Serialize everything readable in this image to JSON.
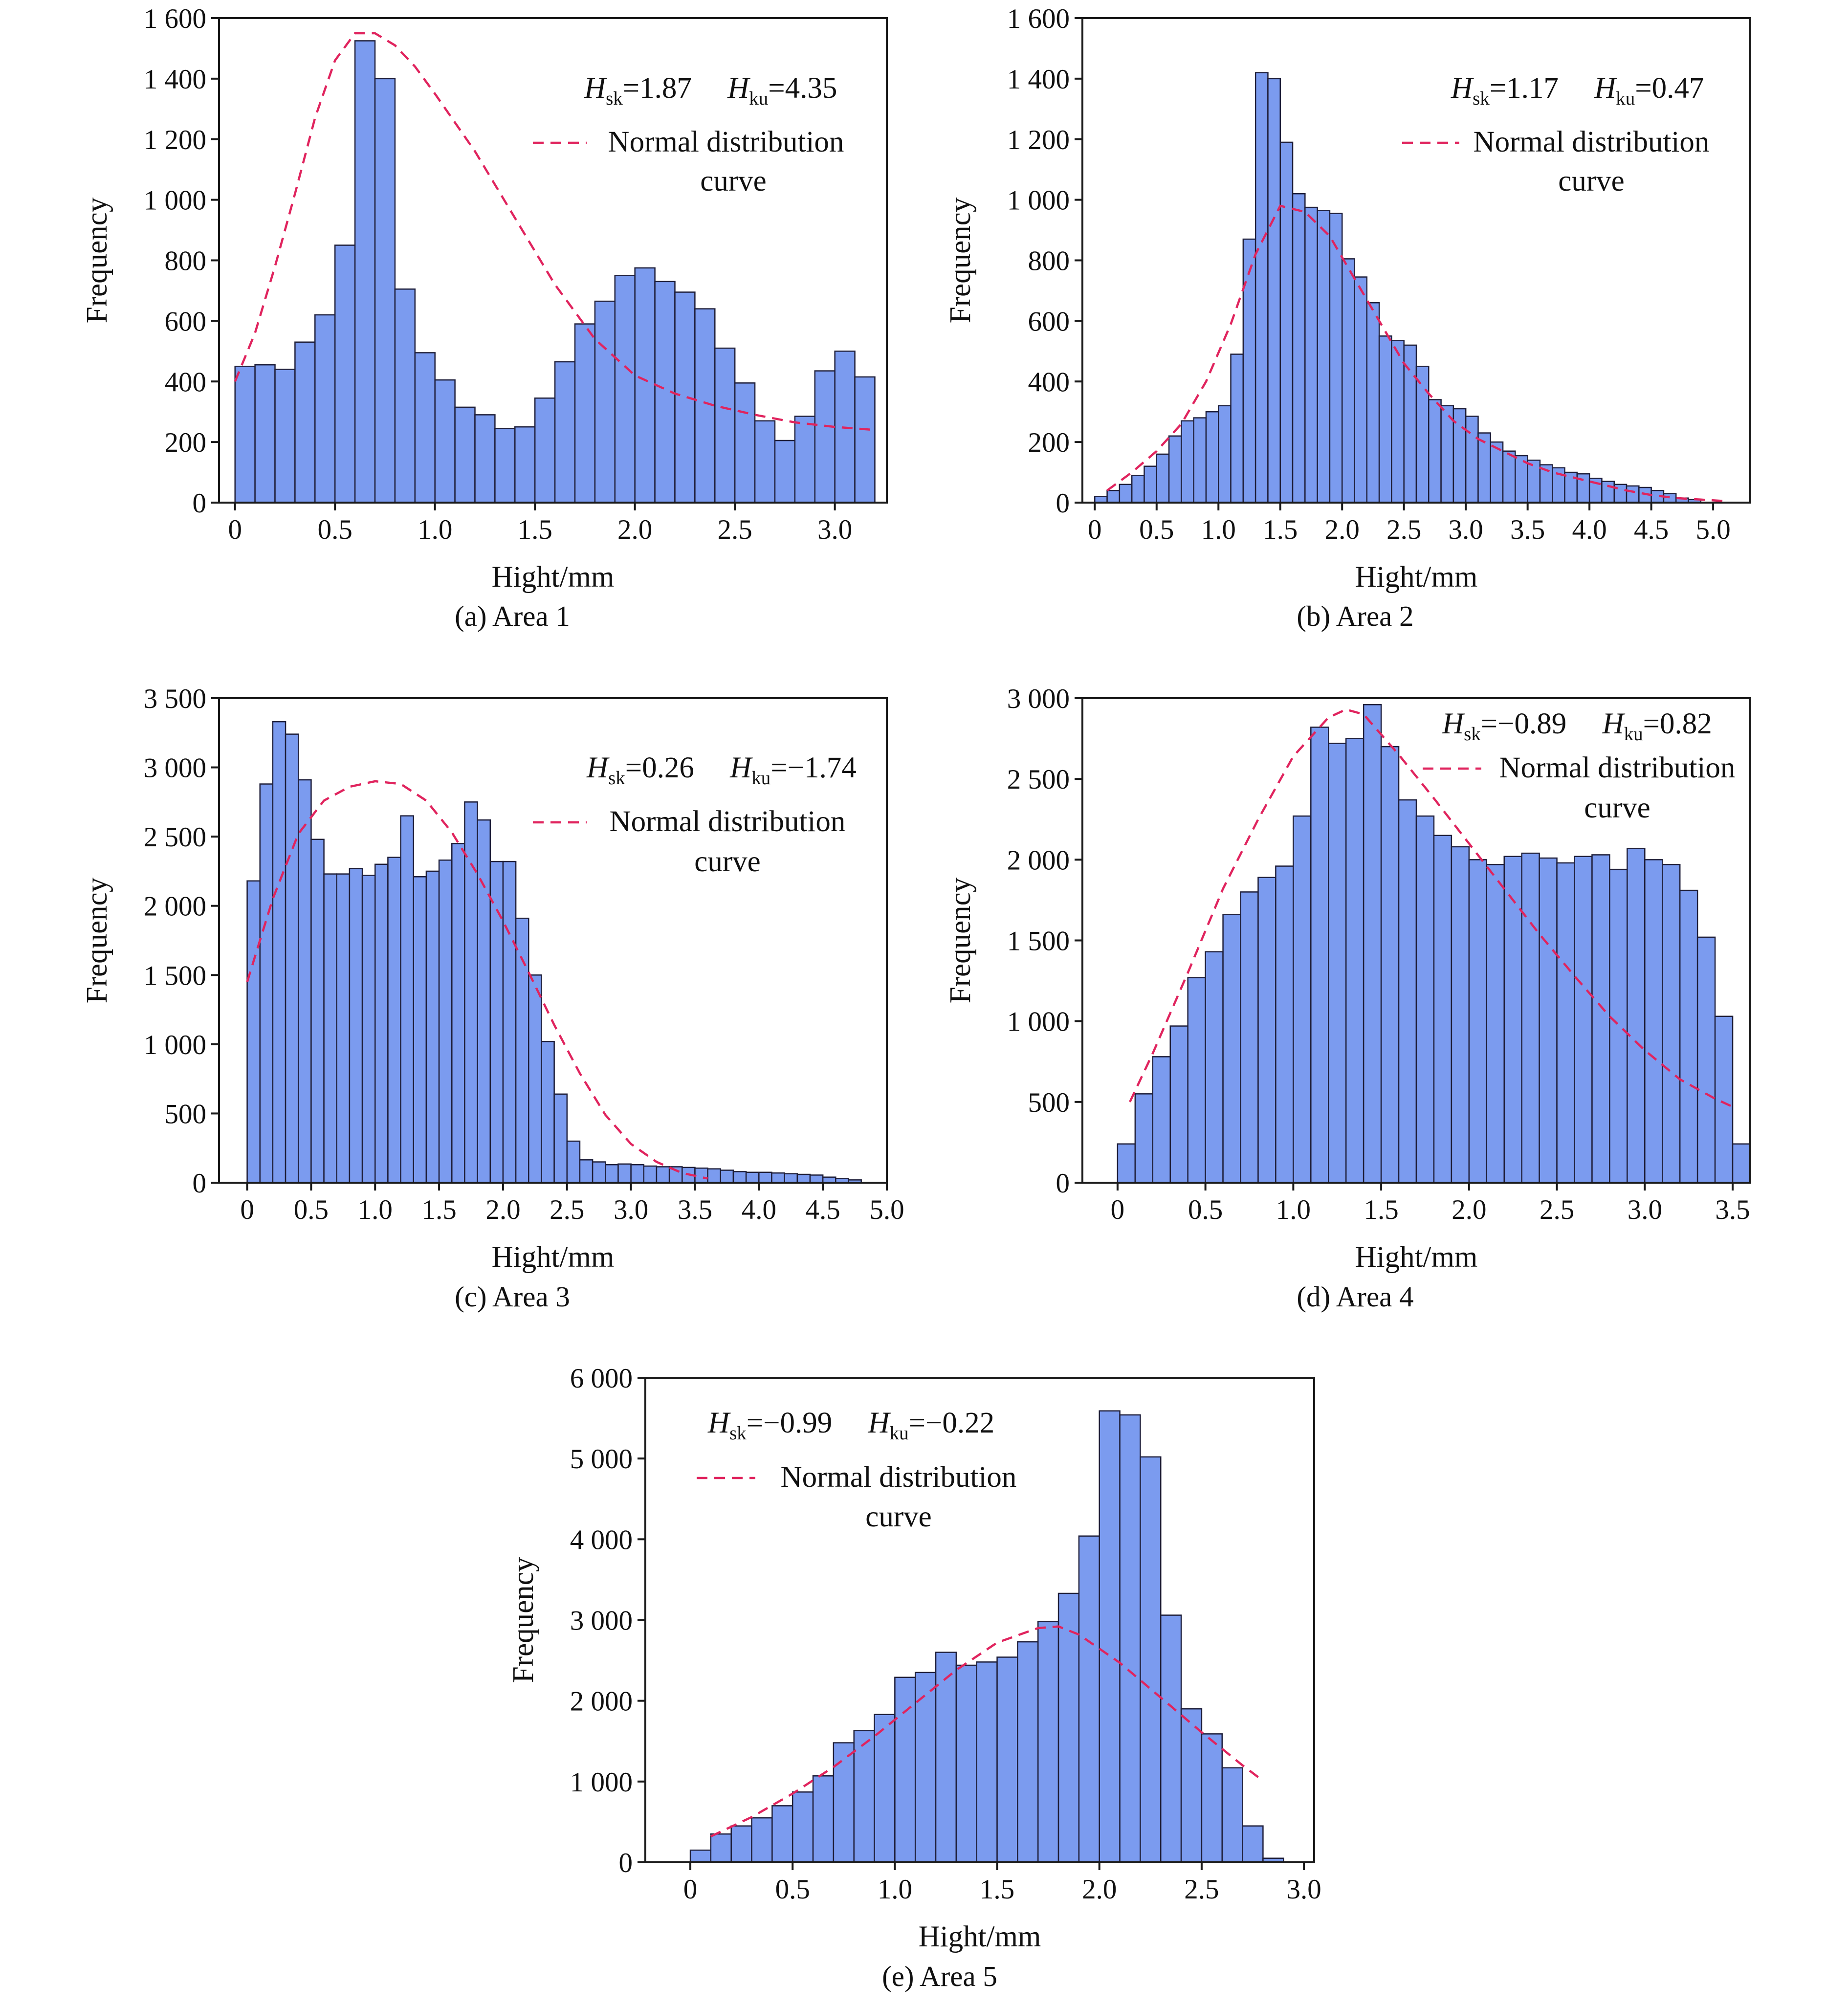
{
  "colors": {
    "bar_fill": "#7b9bef",
    "bar_stroke": "#1f1f3a",
    "curve": "#e0245e",
    "axis": "#1a1a1a"
  },
  "chart_data": [
    {
      "type": "bar",
      "caption": "(a) Area 1",
      "xlabel": "Hight/mm",
      "ylabel": "Frequency",
      "xlim": [
        -0.08,
        3.26
      ],
      "ylim": [
        0,
        1600
      ],
      "xticks": [
        0,
        0.5,
        1.0,
        1.5,
        2.0,
        2.5,
        3.0
      ],
      "xtick_labels": [
        "0",
        "0.5",
        "1.0",
        "1.5",
        "2.0",
        "2.5",
        "3.0"
      ],
      "yticks": [
        0,
        200,
        400,
        600,
        800,
        1000,
        1200,
        1400,
        1600
      ],
      "ytick_labels": [
        "0",
        "200",
        "400",
        "600",
        "800",
        "1 000",
        "1 200",
        "1 400",
        "1 600"
      ],
      "bin_start": 0,
      "bin_width": 0.1,
      "values": [
        450,
        455,
        440,
        530,
        620,
        850,
        1525,
        1400,
        705,
        495,
        405,
        315,
        290,
        245,
        250,
        345,
        465,
        590,
        665,
        750,
        775,
        730,
        695,
        640,
        510,
        395,
        270,
        205,
        285,
        435,
        500,
        415
      ],
      "curve": {
        "x": [
          0,
          0.1,
          0.2,
          0.3,
          0.4,
          0.5,
          0.6,
          0.7,
          0.8,
          0.9,
          1.0,
          1.2,
          1.4,
          1.6,
          1.8,
          2.0,
          2.2,
          2.4,
          2.6,
          2.8,
          3.0,
          3.2
        ],
        "y": [
          400,
          560,
          780,
          1020,
          1270,
          1460,
          1550,
          1550,
          1510,
          1440,
          1350,
          1160,
          940,
          720,
          540,
          420,
          360,
          320,
          290,
          265,
          250,
          240
        ]
      },
      "stats": {
        "hsk_value": "=1.87",
        "hku_value": "=4.35"
      },
      "legend": [
        "Normal distribution",
        "curve"
      ]
    },
    {
      "type": "bar",
      "caption": "(b) Area 2",
      "xlabel": "Hight/mm",
      "ylabel": "Frequency",
      "xlim": [
        -0.1,
        5.3
      ],
      "ylim": [
        0,
        1600
      ],
      "xticks": [
        0,
        0.5,
        1.0,
        1.5,
        2.0,
        2.5,
        3.0,
        3.5,
        4.0,
        4.5,
        5.0
      ],
      "xtick_labels": [
        "0",
        "0.5",
        "1.0",
        "1.5",
        "2.0",
        "2.5",
        "3.0",
        "3.5",
        "4.0",
        "4.5",
        "5.0"
      ],
      "yticks": [
        0,
        200,
        400,
        600,
        800,
        1000,
        1200,
        1400,
        1600
      ],
      "ytick_labels": [
        "0",
        "200",
        "400",
        "600",
        "800",
        "1 000",
        "1 200",
        "1 400",
        "1 600"
      ],
      "bin_start": 0,
      "bin_width": 0.1,
      "values": [
        20,
        40,
        60,
        90,
        120,
        160,
        220,
        270,
        280,
        300,
        320,
        490,
        870,
        1420,
        1400,
        1190,
        1020,
        975,
        965,
        955,
        805,
        745,
        660,
        550,
        535,
        520,
        450,
        340,
        320,
        310,
        285,
        230,
        200,
        170,
        155,
        140,
        125,
        115,
        100,
        95,
        80,
        70,
        60,
        55,
        50,
        40,
        30,
        15,
        10
      ],
      "curve": {
        "x": [
          0.1,
          0.3,
          0.5,
          0.7,
          0.9,
          1.1,
          1.3,
          1.5,
          1.7,
          1.9,
          2.1,
          2.3,
          2.5,
          2.7,
          2.9,
          3.1,
          3.3,
          3.5,
          3.7,
          3.9,
          4.1,
          4.3,
          4.5,
          4.7,
          4.9,
          5.1
        ],
        "y": [
          40,
          100,
          170,
          260,
          400,
          590,
          820,
          980,
          960,
          880,
          740,
          600,
          460,
          360,
          270,
          210,
          170,
          130,
          100,
          80,
          60,
          40,
          25,
          15,
          10,
          5
        ]
      },
      "stats": {
        "hsk_value": "=1.17",
        "hku_value": "=0.47"
      },
      "legend": [
        "Normal distribution",
        "curve"
      ]
    },
    {
      "type": "bar",
      "caption": "(c) Area 3",
      "xlabel": "Hight/mm",
      "ylabel": "Frequency",
      "xlim": [
        -0.22,
        5.0
      ],
      "ylim": [
        0,
        3500
      ],
      "xticks": [
        0,
        0.5,
        1.0,
        1.5,
        2.0,
        2.5,
        3.0,
        3.5,
        4.0,
        4.5,
        5.0
      ],
      "xtick_labels": [
        "0",
        "0.5",
        "1.0",
        "1.5",
        "2.0",
        "2.5",
        "3.0",
        "3.5",
        "4.0",
        "4.5",
        "5.0"
      ],
      "yticks": [
        0,
        500,
        1000,
        1500,
        2000,
        2500,
        3000,
        3500
      ],
      "ytick_labels": [
        "0",
        "500",
        "1 000",
        "1 500",
        "2 000",
        "2 500",
        "3 000",
        "3 500"
      ],
      "bin_start": 0,
      "bin_width": 0.1,
      "values": [
        2180,
        2880,
        3330,
        3240,
        2910,
        2480,
        2230,
        2230,
        2270,
        2220,
        2300,
        2350,
        2650,
        2210,
        2250,
        2330,
        2450,
        2750,
        2620,
        2320,
        2320,
        1910,
        1500,
        1020,
        640,
        300,
        165,
        150,
        130,
        135,
        130,
        120,
        115,
        115,
        110,
        105,
        100,
        90,
        80,
        75,
        75,
        70,
        65,
        60,
        55,
        40,
        30,
        20
      ],
      "curve": {
        "x": [
          0,
          0.2,
          0.4,
          0.6,
          0.8,
          1.0,
          1.2,
          1.4,
          1.6,
          1.8,
          2.0,
          2.2,
          2.4,
          2.6,
          2.8,
          3.0,
          3.2,
          3.4,
          3.6
        ],
        "y": [
          1450,
          2050,
          2520,
          2760,
          2860,
          2900,
          2880,
          2760,
          2530,
          2230,
          1890,
          1520,
          1140,
          790,
          490,
          280,
          150,
          70,
          30
        ]
      },
      "stats": {
        "hsk_value": "=0.26",
        "hku_value": "=−1.74"
      },
      "legend": [
        "Normal distribution",
        "curve"
      ]
    },
    {
      "type": "bar",
      "caption": "(d) Area 4",
      "xlabel": "Hight/mm",
      "ylabel": "Frequency",
      "xlim": [
        -0.2,
        3.6
      ],
      "ylim": [
        0,
        3000
      ],
      "xticks": [
        0,
        0.5,
        1.0,
        1.5,
        2.0,
        2.5,
        3.0,
        3.5
      ],
      "xtick_labels": [
        "0",
        "0.5",
        "1.0",
        "1.5",
        "2.0",
        "2.5",
        "3.0",
        "3.5"
      ],
      "yticks": [
        0,
        500,
        1000,
        1500,
        2000,
        2500,
        3000
      ],
      "ytick_labels": [
        "0",
        "500",
        "1 000",
        "1 500",
        "2 000",
        "2 500",
        "3 000"
      ],
      "bin_start": 0,
      "bin_width": 0.1,
      "values": [
        240,
        550,
        780,
        970,
        1270,
        1430,
        1660,
        1800,
        1890,
        1960,
        2270,
        2820,
        2720,
        2750,
        2960,
        2700,
        2370,
        2270,
        2150,
        2080,
        2000,
        1970,
        2020,
        2040,
        2010,
        1980,
        2020,
        2030,
        1940,
        2070,
        2000,
        1970,
        1810,
        1520,
        1030,
        240
      ],
      "curve": {
        "x": [
          0.07,
          0.2,
          0.4,
          0.6,
          0.8,
          1.0,
          1.2,
          1.3,
          1.4,
          1.6,
          1.8,
          2.0,
          2.2,
          2.4,
          2.6,
          2.8,
          3.0,
          3.2,
          3.4,
          3.5
        ],
        "y": [
          500,
          800,
          1300,
          1820,
          2250,
          2640,
          2880,
          2930,
          2900,
          2650,
          2380,
          2100,
          1820,
          1540,
          1280,
          1030,
          820,
          640,
          520,
          470
        ]
      },
      "stats": {
        "hsk_value": "=−0.89",
        "hku_value": "=0.82"
      },
      "legend": [
        "Normal distribution",
        "curve"
      ]
    },
    {
      "type": "bar",
      "caption": "(e) Area 5",
      "xlabel": "Hight/mm",
      "ylabel": "Frequency",
      "xlim": [
        -0.22,
        3.05
      ],
      "ylim": [
        0,
        6000
      ],
      "xticks": [
        0,
        0.5,
        1.0,
        1.5,
        2.0,
        2.5,
        3.0
      ],
      "xtick_labels": [
        "0",
        "0.5",
        "1.0",
        "1.5",
        "2.0",
        "2.5",
        "3.0"
      ],
      "yticks": [
        0,
        1000,
        2000,
        3000,
        4000,
        5000,
        6000
      ],
      "ytick_labels": [
        "0",
        "1 000",
        "2 000",
        "3 000",
        "4 000",
        "5 000",
        "6 000"
      ],
      "bin_start": 0,
      "bin_width": 0.1,
      "values": [
        150,
        350,
        450,
        550,
        700,
        870,
        1070,
        1480,
        1630,
        1830,
        2290,
        2350,
        2600,
        2440,
        2480,
        2540,
        2730,
        2980,
        3330,
        4040,
        5590,
        5540,
        5020,
        3060,
        1900,
        1590,
        1170,
        450,
        50
      ],
      "curve": {
        "x": [
          0.1,
          0.3,
          0.5,
          0.7,
          0.9,
          1.1,
          1.3,
          1.5,
          1.7,
          1.8,
          1.9,
          2.1,
          2.3,
          2.5,
          2.7,
          2.8
        ],
        "y": [
          320,
          560,
          850,
          1180,
          1560,
          1970,
          2380,
          2720,
          2900,
          2920,
          2820,
          2470,
          2040,
          1610,
          1200,
          1010
        ]
      },
      "stats": {
        "hsk_value": "=−0.99",
        "hku_value": "=−0.22"
      },
      "legend": [
        "Normal distribution",
        "curve"
      ]
    }
  ]
}
